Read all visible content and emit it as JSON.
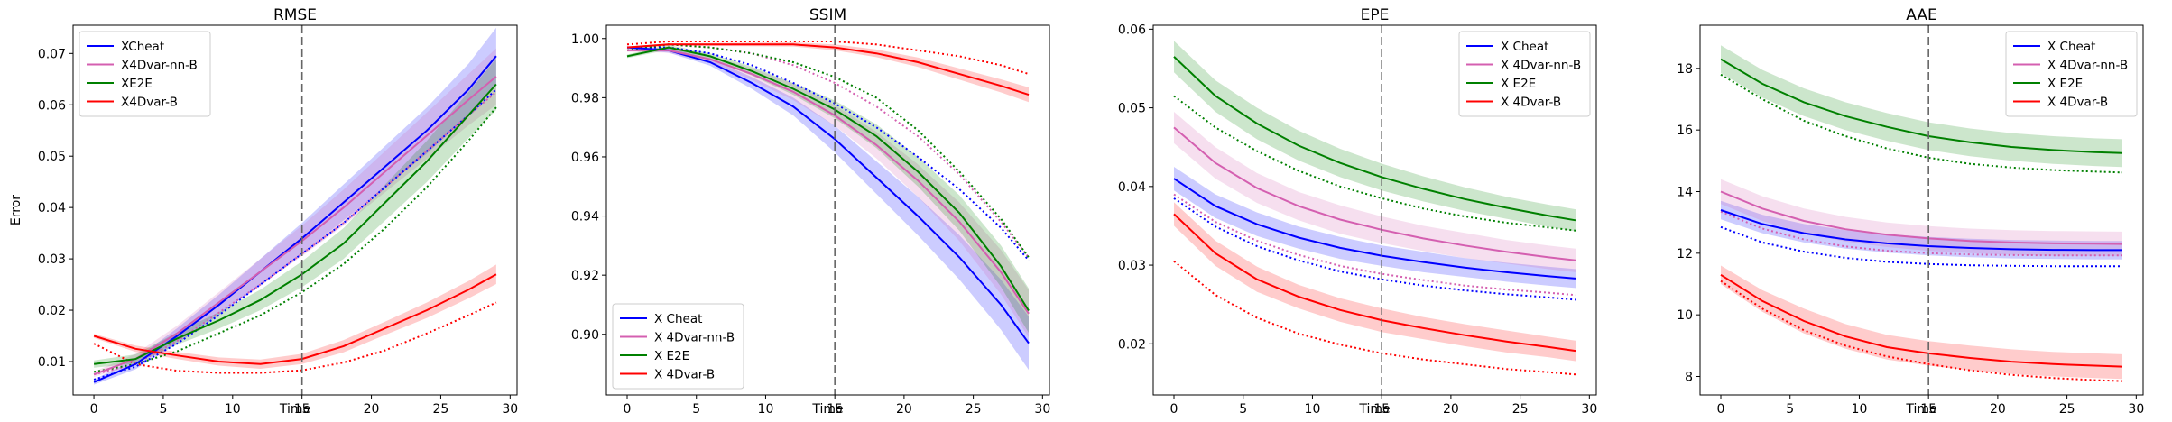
{
  "figure": {
    "colors": {
      "cheat": "#0000ff",
      "nn": "#d45fb0",
      "e2e": "#008000",
      "b": "#ff0000",
      "vline": "#666666"
    }
  },
  "chart_data": [
    {
      "type": "line",
      "title": "RMSE",
      "xlabel": "Time",
      "ylabel": "Error",
      "xlim": [
        -1.5,
        30.5
      ],
      "ylim": [
        0.0035,
        0.0755
      ],
      "xticks": [
        "0",
        "5",
        "10",
        "15",
        "20",
        "25",
        "30"
      ],
      "yticks": [
        "0.01",
        "0.02",
        "0.03",
        "0.04",
        "0.05",
        "0.06",
        "0.07"
      ],
      "vline": 15,
      "legend_loc": "upper-left",
      "x": [
        0,
        3,
        6,
        9,
        12,
        15,
        18,
        21,
        24,
        27,
        29
      ],
      "series": [
        {
          "name": "XCheat",
          "color": "cheat",
          "values": [
            0.006,
            0.0095,
            0.015,
            0.021,
            0.0275,
            0.034,
            0.041,
            0.048,
            0.055,
            0.063,
            0.0695
          ],
          "band": [
            0.0005,
            0.001,
            0.0015,
            0.002,
            0.0025,
            0.003,
            0.0035,
            0.004,
            0.0045,
            0.005,
            0.0055
          ],
          "dotted": [
            0.0065,
            0.009,
            0.0135,
            0.019,
            0.025,
            0.031,
            0.037,
            0.044,
            0.051,
            0.058,
            0.063
          ]
        },
        {
          "name": "X4Dvar-nn-B",
          "color": "nn",
          "values": [
            0.0075,
            0.0105,
            0.0155,
            0.0215,
            0.0275,
            0.0335,
            0.04,
            0.047,
            0.054,
            0.061,
            0.0655
          ],
          "band": [
            0.0005,
            0.001,
            0.0015,
            0.002,
            0.0025,
            0.003,
            0.0035,
            0.004,
            0.0045,
            0.005,
            0.0055
          ],
          "dotted": [
            0.0075,
            0.0095,
            0.014,
            0.0195,
            0.025,
            0.031,
            0.037,
            0.044,
            0.051,
            0.058,
            0.0625
          ]
        },
        {
          "name": "XE2E",
          "color": "e2e",
          "values": [
            0.0095,
            0.0105,
            0.0145,
            0.018,
            0.022,
            0.027,
            0.033,
            0.041,
            0.049,
            0.058,
            0.064
          ],
          "band": [
            0.0007,
            0.0009,
            0.0012,
            0.0016,
            0.002,
            0.0025,
            0.003,
            0.0035,
            0.004,
            0.0045,
            0.005
          ],
          "dotted": [
            0.008,
            0.0095,
            0.012,
            0.0155,
            0.019,
            0.0235,
            0.029,
            0.036,
            0.044,
            0.053,
            0.0595
          ]
        },
        {
          "name": "X4Dvar-B",
          "color": "b",
          "values": [
            0.015,
            0.0125,
            0.0112,
            0.01,
            0.0095,
            0.0105,
            0.013,
            0.0165,
            0.02,
            0.024,
            0.027
          ],
          "band": [
            0.0004,
            0.0006,
            0.0007,
            0.0008,
            0.0009,
            0.001,
            0.0012,
            0.0013,
            0.0015,
            0.0017,
            0.0019
          ],
          "dotted": [
            0.0135,
            0.0095,
            0.0082,
            0.0078,
            0.0078,
            0.0083,
            0.0098,
            0.0122,
            0.0155,
            0.019,
            0.0215
          ]
        }
      ]
    },
    {
      "type": "line",
      "title": "SSIM",
      "xlabel": "Time",
      "ylabel": "",
      "xlim": [
        -1.5,
        30.5
      ],
      "ylim": [
        0.8795,
        1.0045
      ],
      "xticks": [
        "0",
        "5",
        "10",
        "15",
        "20",
        "25",
        "30"
      ],
      "yticks": [
        "0.90",
        "0.92",
        "0.94",
        "0.96",
        "0.98",
        "1.00"
      ],
      "vline": 15,
      "legend_loc": "lower-left",
      "x": [
        0,
        3,
        6,
        9,
        12,
        15,
        18,
        21,
        24,
        27,
        29
      ],
      "series": [
        {
          "name": "X Cheat",
          "color": "cheat",
          "values": [
            0.997,
            0.996,
            0.992,
            0.985,
            0.977,
            0.966,
            0.953,
            0.94,
            0.926,
            0.91,
            0.897
          ],
          "band": [
            0.0005,
            0.0008,
            0.0012,
            0.002,
            0.003,
            0.0045,
            0.0055,
            0.0065,
            0.0075,
            0.0085,
            0.009
          ],
          "dotted": [
            0.997,
            0.997,
            0.995,
            0.991,
            0.985,
            0.978,
            0.97,
            0.96,
            0.949,
            0.936,
            0.925
          ]
        },
        {
          "name": "X 4Dvar-nn-B",
          "color": "nn",
          "values": [
            0.996,
            0.996,
            0.993,
            0.988,
            0.982,
            0.974,
            0.964,
            0.952,
            0.938,
            0.921,
            0.907
          ],
          "band": [
            0.0005,
            0.0008,
            0.0012,
            0.002,
            0.0028,
            0.0035,
            0.0045,
            0.0055,
            0.0065,
            0.0075,
            0.008
          ],
          "dotted": [
            0.997,
            0.998,
            0.997,
            0.995,
            0.991,
            0.985,
            0.977,
            0.967,
            0.954,
            0.938,
            0.926
          ]
        },
        {
          "name": "X E2E",
          "color": "e2e",
          "values": [
            0.994,
            0.997,
            0.994,
            0.989,
            0.983,
            0.976,
            0.967,
            0.955,
            0.941,
            0.923,
            0.908
          ],
          "band": [
            0.0006,
            0.0008,
            0.001,
            0.0015,
            0.002,
            0.003,
            0.004,
            0.005,
            0.006,
            0.007,
            0.0075
          ],
          "dotted": [
            0.996,
            0.998,
            0.997,
            0.995,
            0.992,
            0.987,
            0.98,
            0.969,
            0.955,
            0.939,
            0.926
          ]
        },
        {
          "name": "X 4Dvar-B",
          "color": "b",
          "values": [
            0.997,
            0.998,
            0.998,
            0.998,
            0.998,
            0.997,
            0.995,
            0.992,
            0.988,
            0.984,
            0.981
          ],
          "band": [
            0.0003,
            0.0004,
            0.0005,
            0.0006,
            0.0007,
            0.001,
            0.0013,
            0.0016,
            0.0019,
            0.0022,
            0.0025
          ],
          "dotted": [
            0.998,
            0.999,
            0.999,
            0.999,
            0.999,
            0.999,
            0.998,
            0.996,
            0.994,
            0.991,
            0.988
          ]
        }
      ]
    },
    {
      "type": "line",
      "title": "EPE",
      "xlabel": "Time",
      "ylabel": "",
      "xlim": [
        -1.5,
        30.5
      ],
      "ylim": [
        0.0135,
        0.0605
      ],
      "xticks": [
        "0",
        "5",
        "10",
        "15",
        "20",
        "25",
        "30"
      ],
      "yticks": [
        "0.02",
        "0.03",
        "0.04",
        "0.05",
        "0.06"
      ],
      "vline": 15,
      "legend_loc": "upper-right",
      "x": [
        0,
        3,
        6,
        9,
        12,
        15,
        18,
        21,
        24,
        27,
        29
      ],
      "series": [
        {
          "name": "X Cheat",
          "color": "cheat",
          "values": [
            0.041,
            0.0375,
            0.0352,
            0.0335,
            0.0322,
            0.0312,
            0.0304,
            0.0297,
            0.0291,
            0.0286,
            0.0283
          ],
          "band": [
            0.0015,
            0.0015,
            0.0015,
            0.0014,
            0.0014,
            0.0013,
            0.0013,
            0.0012,
            0.0012,
            0.0012,
            0.0012
          ],
          "dotted": [
            0.0385,
            0.0349,
            0.0324,
            0.0306,
            0.0292,
            0.0282,
            0.0274,
            0.0268,
            0.0263,
            0.0259,
            0.0256
          ]
        },
        {
          "name": "X 4Dvar-nn-B",
          "color": "nn",
          "values": [
            0.0475,
            0.043,
            0.0398,
            0.0375,
            0.0358,
            0.0345,
            0.0334,
            0.0325,
            0.0317,
            0.031,
            0.0306
          ],
          "band": [
            0.002,
            0.002,
            0.0019,
            0.0018,
            0.0018,
            0.0017,
            0.0016,
            0.0016,
            0.0015,
            0.0015,
            0.0015
          ],
          "dotted": [
            0.039,
            0.0355,
            0.0331,
            0.0313,
            0.0299,
            0.0289,
            0.0281,
            0.0274,
            0.0269,
            0.0265,
            0.0262
          ]
        },
        {
          "name": "X E2E",
          "color": "e2e",
          "values": [
            0.0565,
            0.0515,
            0.048,
            0.0452,
            0.043,
            0.0412,
            0.0397,
            0.0384,
            0.0373,
            0.0363,
            0.0357
          ],
          "band": [
            0.002,
            0.002,
            0.002,
            0.0019,
            0.0018,
            0.0017,
            0.0016,
            0.0015,
            0.0014,
            0.0014,
            0.0014
          ],
          "dotted": [
            0.0515,
            0.0475,
            0.0445,
            0.042,
            0.04,
            0.0385,
            0.0372,
            0.0362,
            0.0354,
            0.0348,
            0.0344
          ]
        },
        {
          "name": "X 4Dvar-B",
          "color": "b",
          "values": [
            0.0365,
            0.0315,
            0.0282,
            0.026,
            0.0243,
            0.023,
            0.022,
            0.0211,
            0.0203,
            0.0196,
            0.0191
          ],
          "band": [
            0.0015,
            0.0016,
            0.0016,
            0.0015,
            0.0015,
            0.0015,
            0.0014,
            0.0014,
            0.0014,
            0.0013,
            0.0013
          ],
          "dotted": [
            0.0305,
            0.0262,
            0.0233,
            0.0213,
            0.0199,
            0.0188,
            0.018,
            0.0174,
            0.0168,
            0.0164,
            0.0161
          ]
        }
      ]
    },
    {
      "type": "line",
      "title": "AAE",
      "xlabel": "Time",
      "ylabel": "",
      "xlim": [
        -1.5,
        30.5
      ],
      "ylim": [
        7.4,
        19.4
      ],
      "xticks": [
        "0",
        "5",
        "10",
        "15",
        "20",
        "25",
        "30"
      ],
      "yticks": [
        "8",
        "10",
        "12",
        "14",
        "16",
        "18"
      ],
      "vline": 15,
      "legend_loc": "upper-right",
      "x": [
        0,
        3,
        6,
        9,
        12,
        15,
        18,
        21,
        24,
        27,
        29
      ],
      "series": [
        {
          "name": "X Cheat",
          "color": "cheat",
          "values": [
            13.4,
            12.95,
            12.65,
            12.45,
            12.32,
            12.23,
            12.17,
            12.13,
            12.11,
            12.1,
            12.1
          ],
          "band": [
            0.3,
            0.3,
            0.3,
            0.3,
            0.3,
            0.3,
            0.3,
            0.3,
            0.3,
            0.3,
            0.3
          ],
          "dotted": [
            12.85,
            12.35,
            12.05,
            11.85,
            11.72,
            11.65,
            11.61,
            11.59,
            11.58,
            11.58,
            11.58
          ]
        },
        {
          "name": "X 4Dvar-nn-B",
          "color": "nn",
          "values": [
            14.0,
            13.45,
            13.05,
            12.78,
            12.6,
            12.48,
            12.4,
            12.35,
            12.32,
            12.31,
            12.3
          ],
          "band": [
            0.4,
            0.4,
            0.4,
            0.4,
            0.4,
            0.4,
            0.4,
            0.4,
            0.4,
            0.4,
            0.4
          ],
          "dotted": [
            13.35,
            12.8,
            12.45,
            12.22,
            12.08,
            12.0,
            11.96,
            11.94,
            11.93,
            11.93,
            11.93
          ]
        },
        {
          "name": "X E2E",
          "color": "e2e",
          "values": [
            18.3,
            17.5,
            16.9,
            16.45,
            16.1,
            15.8,
            15.6,
            15.45,
            15.35,
            15.28,
            15.25
          ],
          "band": [
            0.45,
            0.45,
            0.45,
            0.45,
            0.45,
            0.45,
            0.45,
            0.45,
            0.45,
            0.45,
            0.45
          ],
          "dotted": [
            17.8,
            17.0,
            16.3,
            15.8,
            15.4,
            15.1,
            14.9,
            14.78,
            14.7,
            14.65,
            14.62
          ]
        },
        {
          "name": "X 4Dvar-B",
          "color": "b",
          "values": [
            11.3,
            10.45,
            9.8,
            9.3,
            8.95,
            8.75,
            8.6,
            8.48,
            8.4,
            8.35,
            8.32
          ],
          "band": [
            0.3,
            0.35,
            0.4,
            0.4,
            0.4,
            0.4,
            0.4,
            0.4,
            0.4,
            0.4,
            0.4
          ],
          "dotted": [
            11.1,
            10.2,
            9.5,
            9.0,
            8.65,
            8.4,
            8.2,
            8.05,
            7.95,
            7.88,
            7.85
          ]
        }
      ]
    }
  ]
}
